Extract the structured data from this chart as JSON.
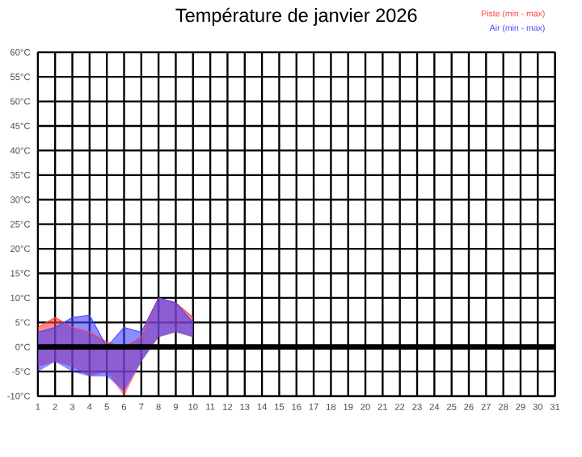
{
  "chart_data": {
    "type": "line",
    "title": "Température de janvier 2026",
    "x": [
      1,
      2,
      3,
      4,
      5,
      6,
      7,
      8,
      9,
      10
    ],
    "series": [
      {
        "name": "Piste (min - max)",
        "color": "#ff4040",
        "values": [
          4,
          6,
          4,
          3,
          1,
          0,
          2,
          10,
          9,
          6
        ],
        "lower": [
          -4,
          -3,
          -4,
          -6,
          -5,
          -10,
          -3,
          2,
          3,
          2
        ],
        "upper": [
          4,
          6,
          4,
          3,
          1,
          0,
          2,
          10,
          9,
          6
        ]
      },
      {
        "name": "Air (min - max)",
        "color": "#4040ff",
        "values": [
          3,
          4,
          6,
          6.5,
          0,
          4,
          3,
          10,
          9,
          5
        ],
        "lower": [
          -5,
          -3,
          -5,
          -6,
          -6,
          -9,
          -3,
          2,
          3,
          2
        ],
        "upper": [
          3,
          4,
          6,
          6.5,
          0,
          4,
          3,
          10,
          9,
          5
        ]
      }
    ],
    "xlim": [
      1,
      31
    ],
    "xticks": [
      1,
      2,
      3,
      4,
      5,
      6,
      7,
      8,
      9,
      10,
      11,
      12,
      13,
      14,
      15,
      16,
      17,
      18,
      19,
      20,
      21,
      22,
      23,
      24,
      25,
      26,
      27,
      28,
      29,
      30,
      31
    ],
    "ylim": [
      -10,
      60
    ],
    "yticks": [
      {
        "value": -10,
        "label": "-10°C"
      },
      {
        "value": -5,
        "label": "-5°C"
      },
      {
        "value": 0,
        "label": "0°C"
      },
      {
        "value": 5,
        "label": "5°C"
      },
      {
        "value": 10,
        "label": "10°C"
      },
      {
        "value": 15,
        "label": "15°C"
      },
      {
        "value": 20,
        "label": "20°C"
      },
      {
        "value": 25,
        "label": "25°C"
      },
      {
        "value": 30,
        "label": "30°C"
      },
      {
        "value": 35,
        "label": "35°C"
      },
      {
        "value": 40,
        "label": "40°C"
      },
      {
        "value": 45,
        "label": "45°C"
      },
      {
        "value": 50,
        "label": "50°C"
      },
      {
        "value": 55,
        "label": "55°C"
      },
      {
        "value": 60,
        "label": "60°C"
      }
    ],
    "grid": true,
    "legend": "top right",
    "ref_lines": [
      {
        "axis": "y",
        "value": 0,
        "color": "#000000"
      }
    ]
  }
}
